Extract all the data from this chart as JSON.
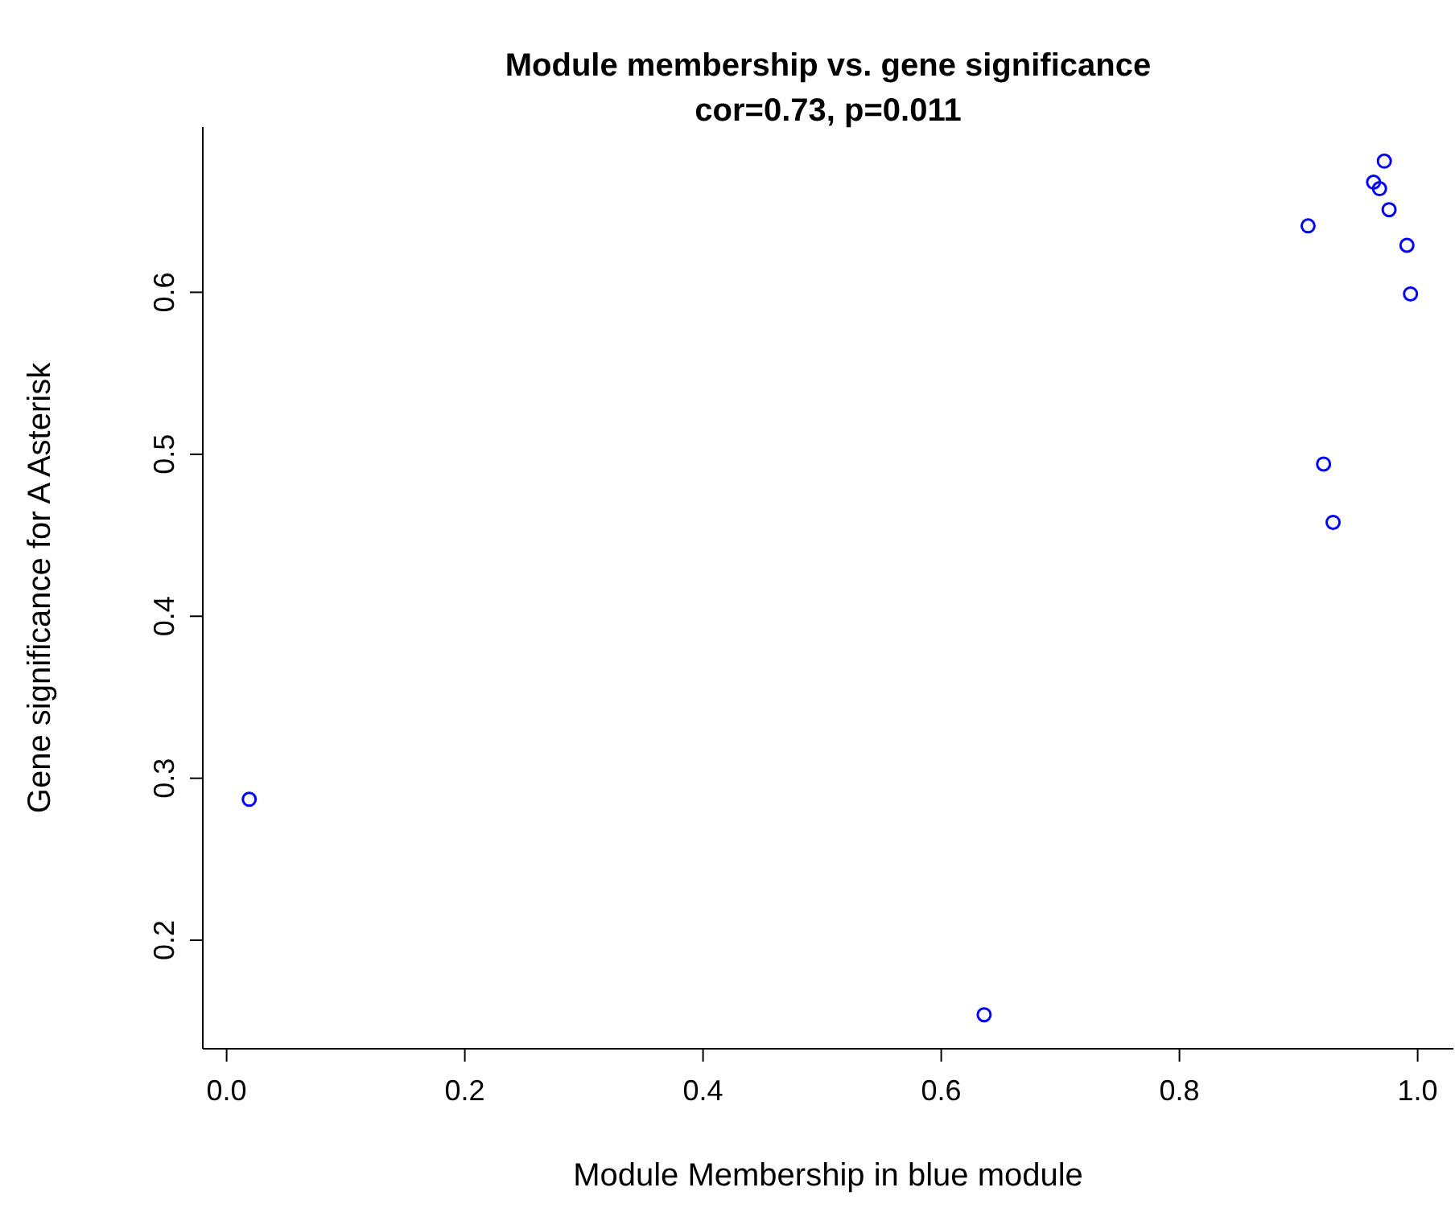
{
  "chart_data": {
    "type": "scatter",
    "title": "Module membership vs. gene significance",
    "subtitle": "cor=0.73, p=0.011",
    "xlabel": "Module Membership in blue module",
    "ylabel": "Gene significance for A Asterisk",
    "x": [
      0.019,
      0.636,
      0.908,
      0.921,
      0.929,
      0.963,
      0.968,
      0.972,
      0.976,
      0.991,
      0.994
    ],
    "series": [
      {
        "color": "#0000ff",
        "values": [
          0.287,
          0.154,
          0.641,
          0.494,
          0.458,
          0.668,
          0.664,
          0.681,
          0.651,
          0.629,
          0.599
        ]
      }
    ],
    "xlim": [
      -0.02,
      1.03
    ],
    "xticks": [
      {
        "value": 0,
        "label": "0.0"
      },
      0.2,
      0.4,
      0.6,
      0.8,
      {
        "value": 1,
        "label": "1.0"
      }
    ],
    "ylim": [
      0.133,
      0.702
    ],
    "yticks": [
      0.2,
      0.3,
      0.4,
      0.5,
      0.6
    ],
    "grid": false,
    "legend": false,
    "marker": "circle"
  }
}
